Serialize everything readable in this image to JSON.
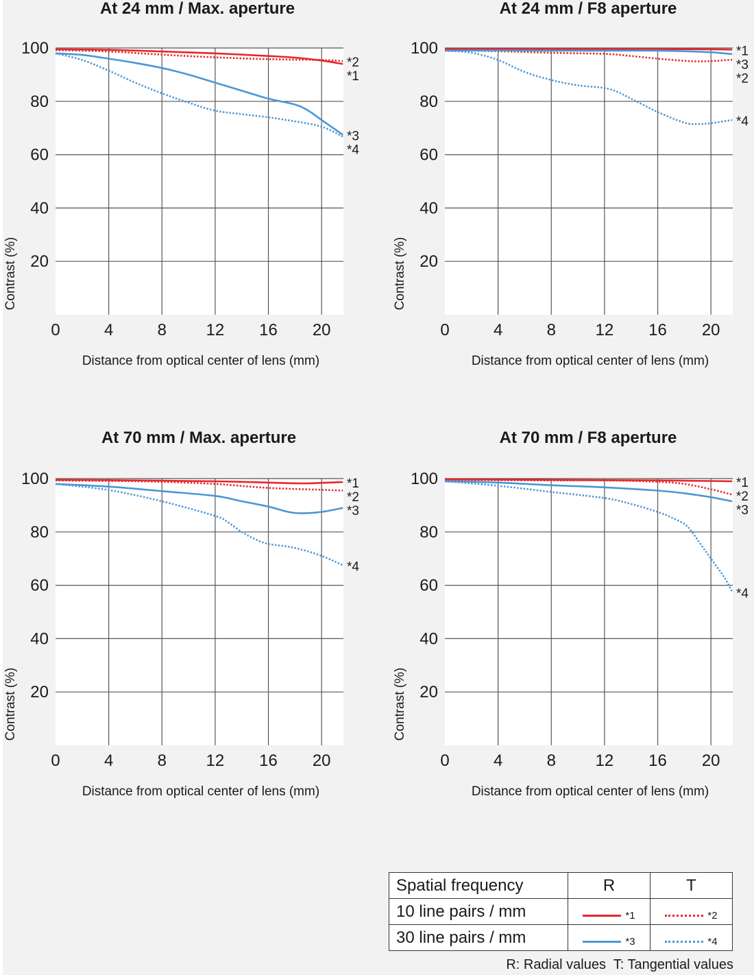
{
  "colors": {
    "red": "#e8262b",
    "blue": "#4a97d6",
    "grid": "#555555",
    "plot_bg": "#ffffff",
    "page_bg": "#f2f2f2"
  },
  "chart_data": [
    {
      "type": "line",
      "title": "At 24 mm / Max. aperture",
      "xlabel": "Distance from optical center of lens (mm)",
      "ylabel": "Contrast (%)",
      "xlim": [
        0,
        21.64
      ],
      "ylim": [
        0,
        100
      ],
      "xticks": [
        "0",
        "4",
        "8",
        "12",
        "16",
        "20"
      ],
      "yticks": [
        "100",
        "80",
        "60",
        "40",
        "20"
      ],
      "grid": true,
      "series": [
        {
          "name": "*1",
          "label": "*1",
          "color": "red",
          "dash": "solid",
          "x": [
            0,
            4,
            8,
            12,
            16,
            18,
            20,
            21.6
          ],
          "y": [
            99.5,
            99.3,
            98.7,
            98,
            97,
            96.4,
            95.3,
            94
          ]
        },
        {
          "name": "*2",
          "label": "*2",
          "color": "red",
          "dash": "dotted",
          "x": [
            0,
            4,
            8,
            12,
            16,
            20,
            21.6
          ],
          "y": [
            99.2,
            98.7,
            97.5,
            96.5,
            95.8,
            95.5,
            95.1
          ]
        },
        {
          "name": "*3",
          "label": "*3",
          "color": "blue",
          "dash": "solid",
          "x": [
            0,
            2,
            4,
            6,
            8,
            10,
            12,
            14,
            16,
            18,
            19,
            20,
            21.6
          ],
          "y": [
            98,
            97.4,
            96,
            94.4,
            92.5,
            90,
            87,
            84,
            81,
            78.8,
            76.5,
            73,
            67.5
          ]
        },
        {
          "name": "*4",
          "label": "*4",
          "color": "blue",
          "dash": "dotted",
          "x": [
            0,
            2,
            4,
            6,
            8,
            10,
            12,
            14,
            16,
            18,
            20,
            21.6
          ],
          "y": [
            98,
            95.5,
            91.5,
            87,
            83,
            79.5,
            76.5,
            75.2,
            74,
            72.5,
            70.5,
            66.8
          ]
        }
      ],
      "label_order": [
        "*2",
        "*1",
        "*3",
        "*4"
      ]
    },
    {
      "type": "line",
      "title": "At 24 mm / F8 aperture",
      "xlabel": "Distance from optical center of lens (mm)",
      "ylabel": "Contrast (%)",
      "xlim": [
        0,
        21.64
      ],
      "ylim": [
        0,
        100
      ],
      "xticks": [
        "0",
        "4",
        "8",
        "12",
        "16",
        "20"
      ],
      "yticks": [
        "100",
        "80",
        "60",
        "40",
        "20"
      ],
      "grid": true,
      "series": [
        {
          "name": "*1",
          "label": "*1",
          "color": "red",
          "dash": "solid",
          "x": [
            0,
            4,
            8,
            12,
            16,
            20,
            21.6
          ],
          "y": [
            99.6,
            99.6,
            99.6,
            99.6,
            99.6,
            99.5,
            99.4
          ]
        },
        {
          "name": "*2",
          "label": "*2",
          "color": "red",
          "dash": "dotted",
          "x": [
            0,
            4,
            8,
            12,
            14,
            16,
            18,
            19,
            20,
            21.6
          ],
          "y": [
            99.2,
            98.8,
            98.2,
            97.8,
            97,
            96,
            95.2,
            95,
            95.1,
            95.6
          ]
        },
        {
          "name": "*3",
          "label": "*3",
          "color": "blue",
          "dash": "solid",
          "x": [
            0,
            4,
            8,
            12,
            16,
            18,
            20,
            21.6
          ],
          "y": [
            99,
            99.1,
            99,
            99,
            99,
            98.8,
            98.4,
            97.7
          ]
        },
        {
          "name": "*4",
          "label": "*4",
          "color": "blue",
          "dash": "dotted",
          "x": [
            0,
            2,
            4,
            6,
            8,
            10,
            12,
            13,
            14,
            16,
            18,
            19,
            20,
            21.6
          ],
          "y": [
            99,
            98.2,
            95.5,
            91,
            88,
            86,
            85,
            83.5,
            81,
            76,
            72,
            71.5,
            71.8,
            73
          ]
        }
      ],
      "label_order": [
        "*1",
        "*3",
        "*2",
        "*4"
      ]
    },
    {
      "type": "line",
      "title": "At 70 mm / Max. aperture",
      "xlabel": "Distance from optical center of lens (mm)",
      "ylabel": "Contrast (%)",
      "xlim": [
        0,
        21.64
      ],
      "ylim": [
        0,
        100
      ],
      "xticks": [
        "0",
        "4",
        "8",
        "12",
        "16",
        "20"
      ],
      "yticks": [
        "100",
        "80",
        "60",
        "40",
        "20"
      ],
      "grid": true,
      "series": [
        {
          "name": "*1",
          "label": "*1",
          "color": "red",
          "dash": "solid",
          "x": [
            0,
            4,
            8,
            12,
            16,
            18.5,
            20,
            21.6
          ],
          "y": [
            99.5,
            99.4,
            99.2,
            99,
            98.5,
            98.2,
            98.4,
            98.7
          ]
        },
        {
          "name": "*2",
          "label": "*2",
          "color": "red",
          "dash": "dotted",
          "x": [
            0,
            4,
            8,
            12,
            16,
            20,
            21.6
          ],
          "y": [
            99.3,
            99.1,
            98.8,
            98,
            96.5,
            95.8,
            95.5
          ]
        },
        {
          "name": "*3",
          "label": "*3",
          "color": "blue",
          "dash": "solid",
          "x": [
            0,
            4,
            8,
            12,
            14,
            16,
            17.5,
            18.5,
            20,
            21.6
          ],
          "y": [
            98,
            97,
            95.3,
            93.5,
            91.5,
            89.5,
            87.5,
            87,
            87.5,
            89
          ]
        },
        {
          "name": "*4",
          "label": "*4",
          "color": "blue",
          "dash": "dotted",
          "x": [
            0,
            4,
            8,
            12,
            13,
            14,
            15,
            16,
            18,
            20,
            21.6
          ],
          "y": [
            98,
            95.7,
            91.5,
            86,
            83.5,
            80,
            77.3,
            75.5,
            74,
            71,
            67.5
          ]
        }
      ],
      "label_order": [
        "*1",
        "*2",
        "*3",
        "*4"
      ]
    },
    {
      "type": "line",
      "title": "At 70 mm / F8 aperture",
      "xlabel": "Distance from optical center of lens (mm)",
      "ylabel": "Contrast (%)",
      "xlim": [
        0,
        21.64
      ],
      "ylim": [
        0,
        100
      ],
      "xticks": [
        "0",
        "4",
        "8",
        "12",
        "16",
        "20"
      ],
      "yticks": [
        "100",
        "80",
        "60",
        "40",
        "20"
      ],
      "grid": true,
      "series": [
        {
          "name": "*1",
          "label": "*1",
          "color": "red",
          "dash": "solid",
          "x": [
            0,
            4,
            8,
            12,
            16,
            20,
            21.6
          ],
          "y": [
            99.7,
            99.6,
            99.5,
            99.4,
            99.3,
            99.1,
            99
          ]
        },
        {
          "name": "*2",
          "label": "*2",
          "color": "red",
          "dash": "dotted",
          "x": [
            0,
            4,
            8,
            12,
            16,
            18,
            20,
            21.6
          ],
          "y": [
            99.5,
            99.4,
            99.3,
            99.3,
            98.8,
            98,
            96,
            94
          ]
        },
        {
          "name": "*3",
          "label": "*3",
          "color": "blue",
          "dash": "solid",
          "x": [
            0,
            4,
            8,
            12,
            16,
            18,
            20,
            21.6
          ],
          "y": [
            99,
            98.5,
            97.5,
            96.7,
            95.5,
            94.5,
            93,
            91.5
          ]
        },
        {
          "name": "*4",
          "label": "*4",
          "color": "blue",
          "dash": "dotted",
          "x": [
            0,
            4,
            8,
            12,
            14,
            16,
            17,
            18,
            18.5,
            19,
            20,
            21,
            21.6
          ],
          "y": [
            99,
            97.3,
            95,
            92.7,
            90.5,
            87.5,
            85.5,
            83,
            80.5,
            77,
            70,
            63,
            57.5
          ]
        }
      ],
      "label_order": [
        "*1",
        "*2",
        "*3",
        "*4"
      ]
    }
  ],
  "legend": {
    "header": {
      "col0": "Spatial frequency",
      "col1": "R",
      "col2": "T"
    },
    "rows": [
      {
        "label": "10 line pairs / mm",
        "r_tag": "*1",
        "t_tag": "*2",
        "color": "red"
      },
      {
        "label": "30 line pairs / mm",
        "r_tag": "*3",
        "t_tag": "*4",
        "color": "blue"
      }
    ],
    "note": "R: Radial values  T: Tangential values"
  }
}
